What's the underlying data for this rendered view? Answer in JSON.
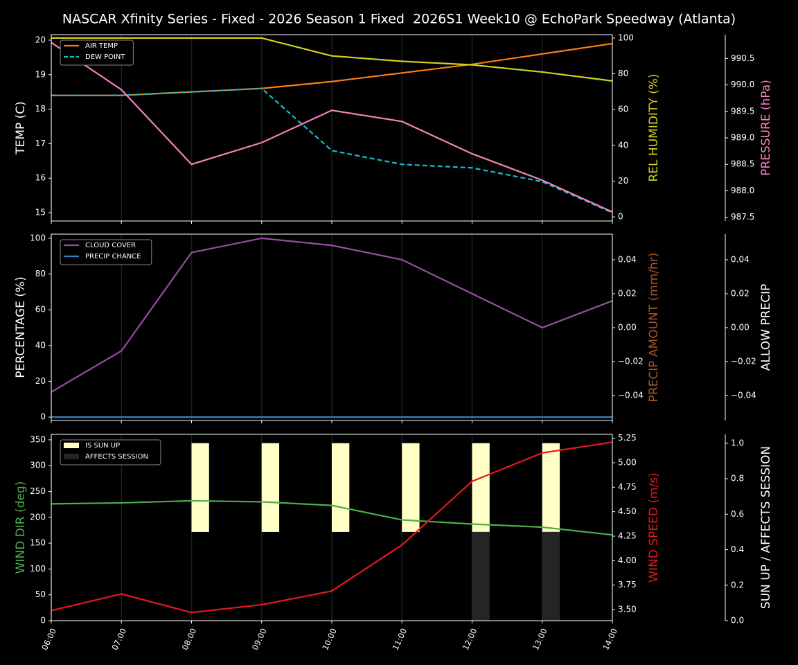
{
  "chart_data": [
    {
      "type": "line",
      "title": "NASCAR Xfinity Series - Fixed - 2026 Season 1 Fixed  2026S1 Week10 @ EchoPark Speedway (Atlanta)",
      "legend": "upper left",
      "grid": true,
      "axes": [
        {
          "label": "TEMP (C)",
          "color": "#ffffff",
          "lim": [
            14.76,
            20.16
          ],
          "ticks": [
            15,
            16,
            17,
            18,
            19,
            20
          ]
        },
        {
          "label": "REL HUMIDITY (%)",
          "color": "#d2d21e",
          "lim": [
            -2.3,
            101.9
          ],
          "ticks": [
            0,
            20,
            40,
            60,
            80,
            100
          ]
        },
        {
          "label": "PRESSURE (hPa)",
          "color": "#f781bf",
          "lim": [
            987.43,
            990.95
          ],
          "ticks": [
            987.5,
            {
              "value": 988,
              "label": "988.0"
            },
            988.5,
            {
              "value": 989,
              "label": "989.0"
            },
            989.5,
            {
              "value": 990,
              "label": "990.0"
            },
            990.5
          ]
        }
      ],
      "series": [
        {
          "name": "AIR TEMP",
          "color": "#ff7f0e",
          "axis": 0,
          "values": [
            18.4,
            18.4,
            18.5,
            18.6,
            18.8,
            19.05,
            19.3,
            19.6,
            19.9
          ]
        },
        {
          "name": "DEW POINT",
          "color": "#17becf",
          "dash": true,
          "axis": 0,
          "values": [
            18.4,
            18.4,
            18.5,
            18.6,
            16.8,
            16.4,
            16.3,
            15.9,
            15.0
          ]
        },
        {
          "color": "#d2d21e",
          "axis": 1,
          "values": [
            100,
            100,
            100,
            100,
            90,
            87,
            85,
            81,
            76
          ]
        },
        {
          "color": "#f781bf",
          "axis": 2,
          "values": [
            990.8,
            989.91,
            988.5,
            988.91,
            989.52,
            989.31,
            988.7,
            988.2,
            987.6
          ]
        }
      ]
    },
    {
      "type": "line",
      "legend": "upper left",
      "grid": true,
      "axes": [
        {
          "label": "PERCENTAGE (%)",
          "color": "#ffffff",
          "lim": [
            -1.9,
            102.3
          ],
          "ticks": [
            0,
            20,
            40,
            60,
            80,
            100
          ]
        },
        {
          "label": "PRECIP AMOUNT (mm/hr)",
          "color": "#a65628",
          "lim": [
            -0.0547,
            0.0551
          ],
          "ticks": [
            {
              "value": -0.04,
              "label": "−0.04"
            },
            {
              "value": -0.02,
              "label": "−0.02"
            },
            {
              "value": 0,
              "label": "0.00"
            },
            0.02,
            0.04
          ]
        },
        {
          "label": "ALLOW PRECIP",
          "color": "#ffffff",
          "lim": [
            -0.0547,
            0.0551
          ],
          "ticks": [
            {
              "value": -0.04,
              "label": "−0.04"
            },
            {
              "value": -0.02,
              "label": "−0.02"
            },
            {
              "value": 0,
              "label": "0.00"
            },
            0.02,
            0.04
          ]
        }
      ],
      "series": [
        {
          "name": "CLOUD COVER",
          "color": "#984ea3",
          "axis": 0,
          "values": [
            14,
            37,
            92,
            100,
            96,
            88,
            69,
            50,
            65
          ]
        },
        {
          "name": "PRECIP CHANCE",
          "color": "#377eb8",
          "axis": 0,
          "values": [
            0,
            0,
            0,
            0,
            0,
            0,
            0,
            0,
            0
          ]
        }
      ]
    },
    {
      "type": "line",
      "legend": "upper left",
      "grid": true,
      "categories": [
        "06:00",
        "07:00",
        "08:00",
        "09:00",
        "10:00",
        "11:00",
        "12:00",
        "13:00",
        "14:00"
      ],
      "axes": [
        {
          "label": "WIND DIR (deg)",
          "color": "#4daf4a",
          "lim": [
            0,
            360.6
          ],
          "ticks": [
            0,
            50,
            100,
            150,
            200,
            250,
            300,
            350
          ]
        },
        {
          "label": "WIND SPEED (m/s)",
          "color": "#e41a1c",
          "lim": [
            3.387,
            5.29
          ],
          "ticks": [
            {
              "value": 3.5,
              "label": "3.50"
            },
            3.75,
            {
              "value": 4,
              "label": "4.00"
            },
            4.25,
            {
              "value": 4.5,
              "label": "4.50"
            },
            4.75,
            {
              "value": 5,
              "label": "5.00"
            },
            5.25
          ]
        },
        {
          "label": "SUN UP / AFFECTS SESSION",
          "color": "#ffffff",
          "lim": [
            0,
            1.05
          ],
          "ticks": [
            {
              "value": 0,
              "label": "0.0"
            },
            0.2,
            0.4,
            0.6,
            0.8,
            {
              "value": 1,
              "label": "1.0"
            }
          ]
        }
      ],
      "series": [
        {
          "name": "IS SUN UP",
          "type": "bar",
          "color": "#ffffc6",
          "axis": 2,
          "bottom": 0.5,
          "values": [
            0,
            0,
            0.5,
            0.5,
            0.5,
            0.5,
            0.5,
            0.5,
            0
          ]
        },
        {
          "name": "AFFECTS SESSION",
          "type": "bar",
          "color": "#252525",
          "axis": 2,
          "values": [
            0,
            0,
            0,
            0,
            0,
            0,
            0.5,
            0.5,
            0
          ]
        },
        {
          "color": "#4daf4a",
          "axis": 0,
          "values": [
            226,
            228,
            232,
            230,
            223,
            195,
            187,
            181,
            166
          ]
        },
        {
          "color": "#e41a1c",
          "axis": 1,
          "values": [
            3.49,
            3.66,
            3.47,
            3.55,
            3.69,
            4.16,
            4.81,
            5.1,
            5.21
          ]
        }
      ]
    }
  ]
}
